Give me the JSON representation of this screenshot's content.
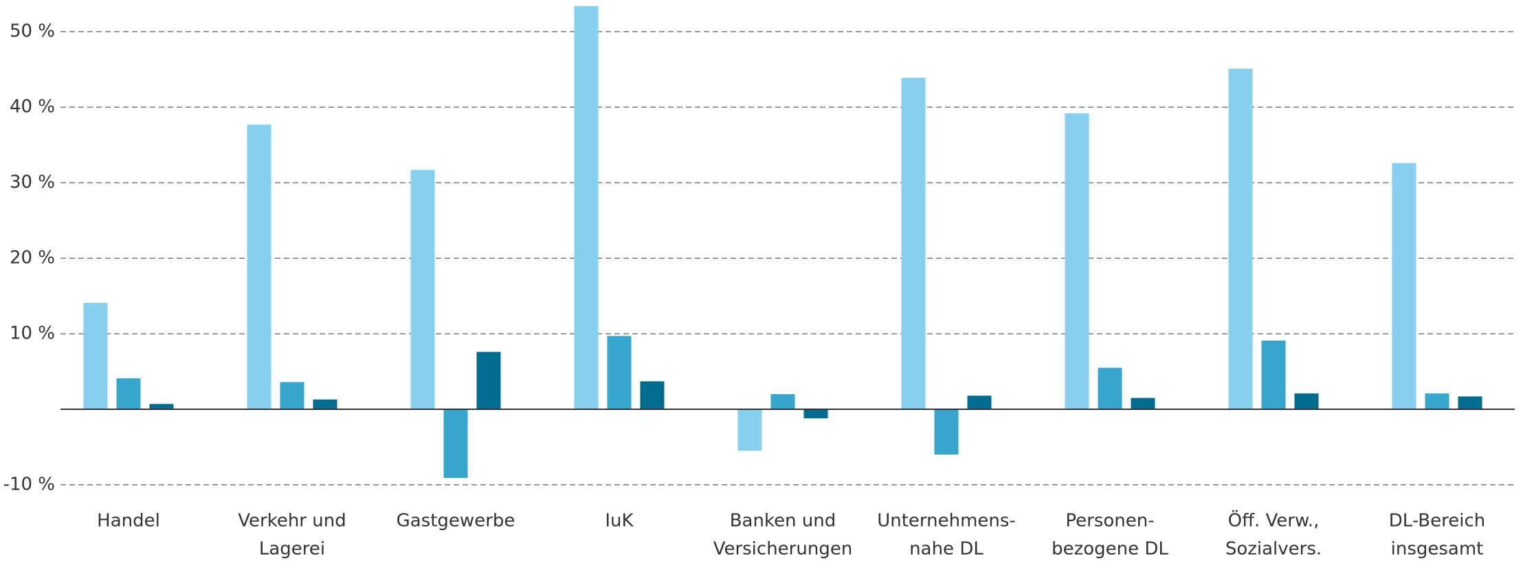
{
  "chart_data": {
    "type": "bar",
    "categories": [
      [
        "Handel"
      ],
      [
        "Verkehr und",
        "Lagerei"
      ],
      [
        "Gastgewerbe"
      ],
      [
        "IuK"
      ],
      [
        "Banken und",
        "Versicherungen"
      ],
      [
        "Unternehmens-",
        "nahe DL"
      ],
      [
        "Personen-",
        "bezogene DL"
      ],
      [
        "Öff. Verw.,",
        "Sozialvers."
      ],
      [
        "DL-Bereich",
        "insgesamt"
      ]
    ],
    "series": [
      {
        "color": "#87d1f0",
        "values": [
          14.1,
          37.7,
          31.7,
          53.4,
          -5.5,
          43.9,
          39.2,
          45.1,
          32.6
        ]
      },
      {
        "color": "#36a6cf",
        "values": [
          4.1,
          3.6,
          -9.1,
          9.7,
          2.0,
          -6.0,
          5.5,
          9.1,
          2.1
        ]
      },
      {
        "color": "#006c8f",
        "values": [
          0.7,
          1.3,
          7.6,
          3.7,
          -1.2,
          1.8,
          1.5,
          2.1,
          1.7
        ]
      }
    ],
    "ylim": [
      -11,
      54.2
    ],
    "yticks": [
      {
        "value": -10,
        "label": "-10 %"
      },
      {
        "value": 10,
        "label": "10 %"
      },
      {
        "value": 20,
        "label": "20 %"
      },
      {
        "value": 30,
        "label": "30 %"
      },
      {
        "value": 40,
        "label": "40 %"
      },
      {
        "value": 50,
        "label": "50 %"
      }
    ],
    "grid": true
  }
}
